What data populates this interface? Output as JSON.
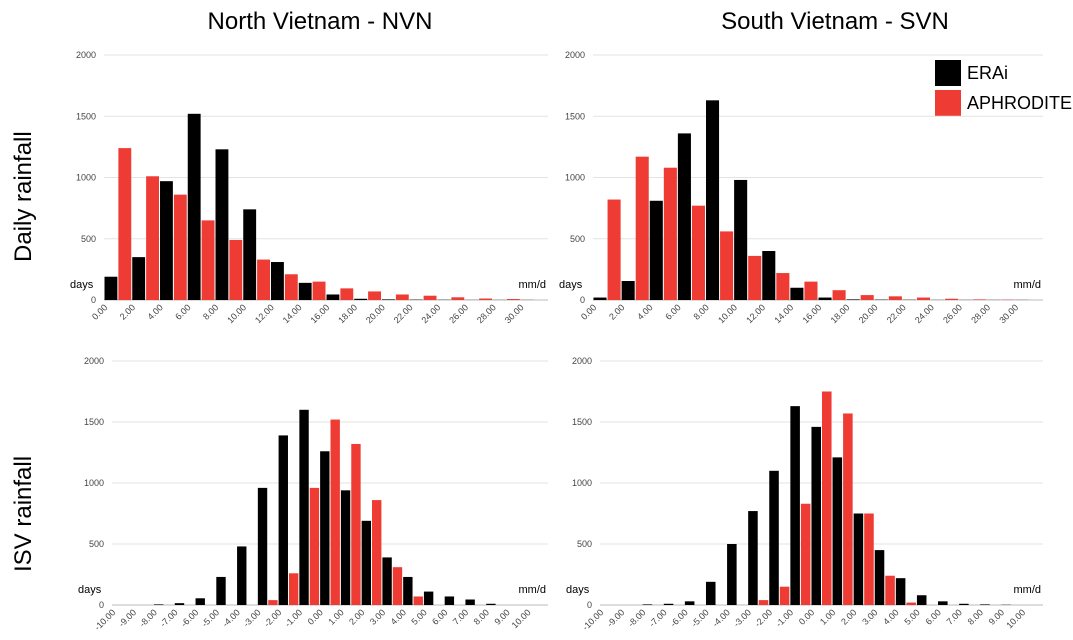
{
  "column_titles": [
    "North Vietnam - NVN",
    "South Vietnam - SVN"
  ],
  "row_titles": [
    "Daily rainfall",
    "ISV rainfall"
  ],
  "legend": [
    {
      "name": "ERAi",
      "color": "#000000"
    },
    {
      "name": "APHRODITE",
      "color": "#ee3b33"
    }
  ],
  "chart_data": [
    {
      "type": "bar",
      "title": "North Vietnam - NVN",
      "row": "Daily rainfall",
      "ylabel": "days",
      "xlabel": "mm/d",
      "ylim": [
        0,
        2000
      ],
      "yticks": [
        "0",
        "500",
        "1000",
        "1500",
        "2000"
      ],
      "categories": [
        "0.00",
        "2.00",
        "4.00",
        "6.00",
        "8.00",
        "10.00",
        "12.00",
        "14.00",
        "16.00",
        "18.00",
        "20.00",
        "22.00",
        "24.00",
        "26.00",
        "28.00",
        "30.00"
      ],
      "series": [
        {
          "name": "ERAi",
          "values": [
            190,
            350,
            970,
            1520,
            1230,
            740,
            310,
            140,
            45,
            10,
            5,
            3,
            2,
            1,
            1,
            1
          ]
        },
        {
          "name": "APHRODITE",
          "values": [
            1240,
            1010,
            860,
            650,
            490,
            330,
            210,
            150,
            95,
            70,
            45,
            35,
            22,
            12,
            8,
            0
          ]
        }
      ]
    },
    {
      "type": "bar",
      "title": "South Vietnam - SVN",
      "row": "Daily rainfall",
      "ylabel": "days",
      "xlabel": "mm/d",
      "ylim": [
        0,
        2000
      ],
      "yticks": [
        "0",
        "500",
        "1000",
        "1500",
        "2000"
      ],
      "categories": [
        "0.00",
        "2.00",
        "4.00",
        "6.00",
        "8.00",
        "10.00",
        "12.00",
        "14.00",
        "16.00",
        "18.00",
        "20.00",
        "22.00",
        "24.00",
        "26.00",
        "28.00",
        "30.00"
      ],
      "series": [
        {
          "name": "ERAi",
          "values": [
            20,
            155,
            810,
            1360,
            1630,
            980,
            400,
            100,
            20,
            5,
            3,
            2,
            1,
            1,
            1,
            1
          ]
        },
        {
          "name": "APHRODITE",
          "values": [
            820,
            1170,
            1080,
            770,
            560,
            360,
            220,
            150,
            80,
            40,
            30,
            20,
            10,
            5,
            3,
            0
          ]
        }
      ]
    },
    {
      "type": "bar",
      "title": "North Vietnam - NVN",
      "row": "ISV rainfall",
      "ylabel": "days",
      "xlabel": "mm/d",
      "ylim": [
        0,
        2000
      ],
      "yticks": [
        "0",
        "500",
        "1000",
        "1500",
        "2000"
      ],
      "categories": [
        "-10.00",
        "-9.00",
        "-8.00",
        "-7.00",
        "-6.00",
        "-5.00",
        "-4.00",
        "-3.00",
        "-2.00",
        "-1.00",
        "0.00",
        "1.00",
        "2.00",
        "3.00",
        "4.00",
        "5.00",
        "6.00",
        "7.00",
        "8.00",
        "9.00",
        "10.00"
      ],
      "series": [
        {
          "name": "ERAi",
          "values": [
            0,
            0,
            5,
            15,
            55,
            230,
            480,
            960,
            1390,
            1600,
            1260,
            940,
            690,
            390,
            230,
            110,
            70,
            45,
            10,
            0,
            0
          ]
        },
        {
          "name": "APHRODITE",
          "values": [
            0,
            0,
            0,
            0,
            0,
            0,
            0,
            40,
            260,
            960,
            1520,
            1320,
            860,
            310,
            70,
            0,
            0,
            0,
            0,
            0,
            0
          ]
        }
      ]
    },
    {
      "type": "bar",
      "title": "South Vietnam - SVN",
      "row": "ISV rainfall",
      "ylabel": "days",
      "xlabel": "mm/d",
      "ylim": [
        0,
        2000
      ],
      "yticks": [
        "0",
        "500",
        "1000",
        "1500",
        "2000"
      ],
      "categories": [
        "-10.00",
        "-9.00",
        "-8.00",
        "-7.00",
        "-6.00",
        "-5.00",
        "-4.00",
        "-3.00",
        "-2.00",
        "-1.00",
        "0.00",
        "1.00",
        "2.00",
        "3.00",
        "4.00",
        "5.00",
        "6.00",
        "7.00",
        "8.00",
        "9.00",
        "10.00"
      ],
      "series": [
        {
          "name": "ERAi",
          "values": [
            0,
            0,
            5,
            10,
            30,
            190,
            500,
            770,
            1100,
            1630,
            1460,
            1210,
            750,
            450,
            220,
            80,
            30,
            10,
            5,
            2,
            0
          ]
        },
        {
          "name": "APHRODITE",
          "values": [
            0,
            0,
            0,
            0,
            0,
            0,
            0,
            40,
            150,
            830,
            1750,
            1570,
            750,
            240,
            20,
            0,
            0,
            0,
            0,
            0,
            0
          ]
        }
      ]
    }
  ]
}
